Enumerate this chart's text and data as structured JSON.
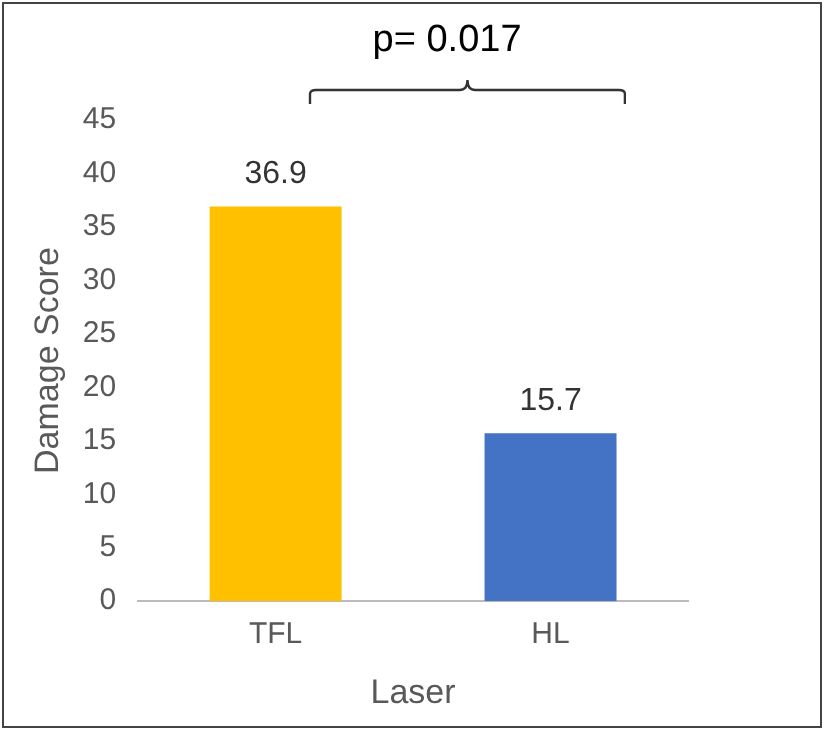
{
  "chart_data": {
    "type": "bar",
    "xlabel": "Laser",
    "ylabel": "Damage Score",
    "categories": [
      "TFL",
      "HL"
    ],
    "values": [
      36.9,
      15.7
    ],
    "colors": [
      "#ffc000",
      "#4472c4"
    ],
    "ylim": [
      0,
      45
    ],
    "yticks": [
      0,
      5,
      10,
      15,
      20,
      25,
      30,
      35,
      40,
      45
    ],
    "grid": false,
    "legend": false,
    "data_labels": true,
    "annotations": [
      "p= 0.017"
    ]
  }
}
